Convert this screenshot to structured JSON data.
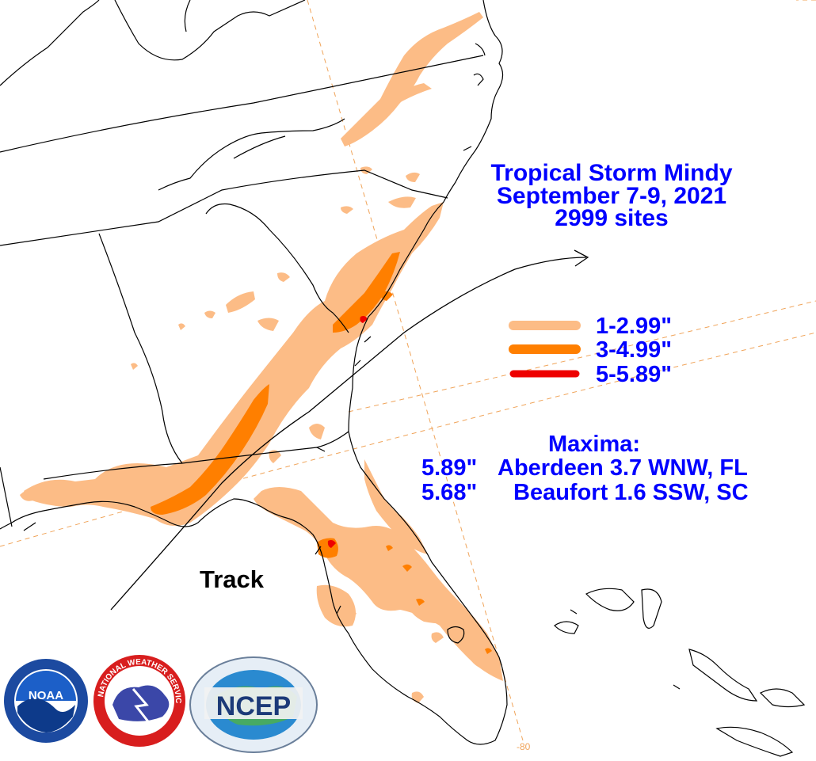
{
  "title": {
    "line1": "Tropical Storm Mindy",
    "line2": "September 7-9, 2021",
    "line3": "2999 sites"
  },
  "legend": [
    {
      "label": "1-2.99\"",
      "color": "#fcbc86"
    },
    {
      "label": "3-4.99\"",
      "color": "#ff7f00"
    },
    {
      "label": "5-5.89\"",
      "color": "#ee0000"
    }
  ],
  "maxima": {
    "heading": "Maxima:",
    "entries": [
      {
        "value": "5.89\"",
        "location": "Aberdeen 3.7 WNW, FL"
      },
      {
        "value": "5.68\"",
        "location": "Beaufort 1.6 SSW, SC"
      }
    ]
  },
  "track_label": "Track",
  "longitude_label": "-80",
  "colors": {
    "text": "#0000ff",
    "gridline": "#f0a45a",
    "boundary": "#000000",
    "rain_light": "#fcbc86",
    "rain_medium": "#ff7f00",
    "rain_heavy": "#ee0000"
  },
  "logos": [
    {
      "name": "noaa-logo",
      "text": "NOAA"
    },
    {
      "name": "nws-logo",
      "text": "NATIONAL WEATHER SERVICE"
    },
    {
      "name": "ncep-logo",
      "text": "NCEP"
    }
  ]
}
